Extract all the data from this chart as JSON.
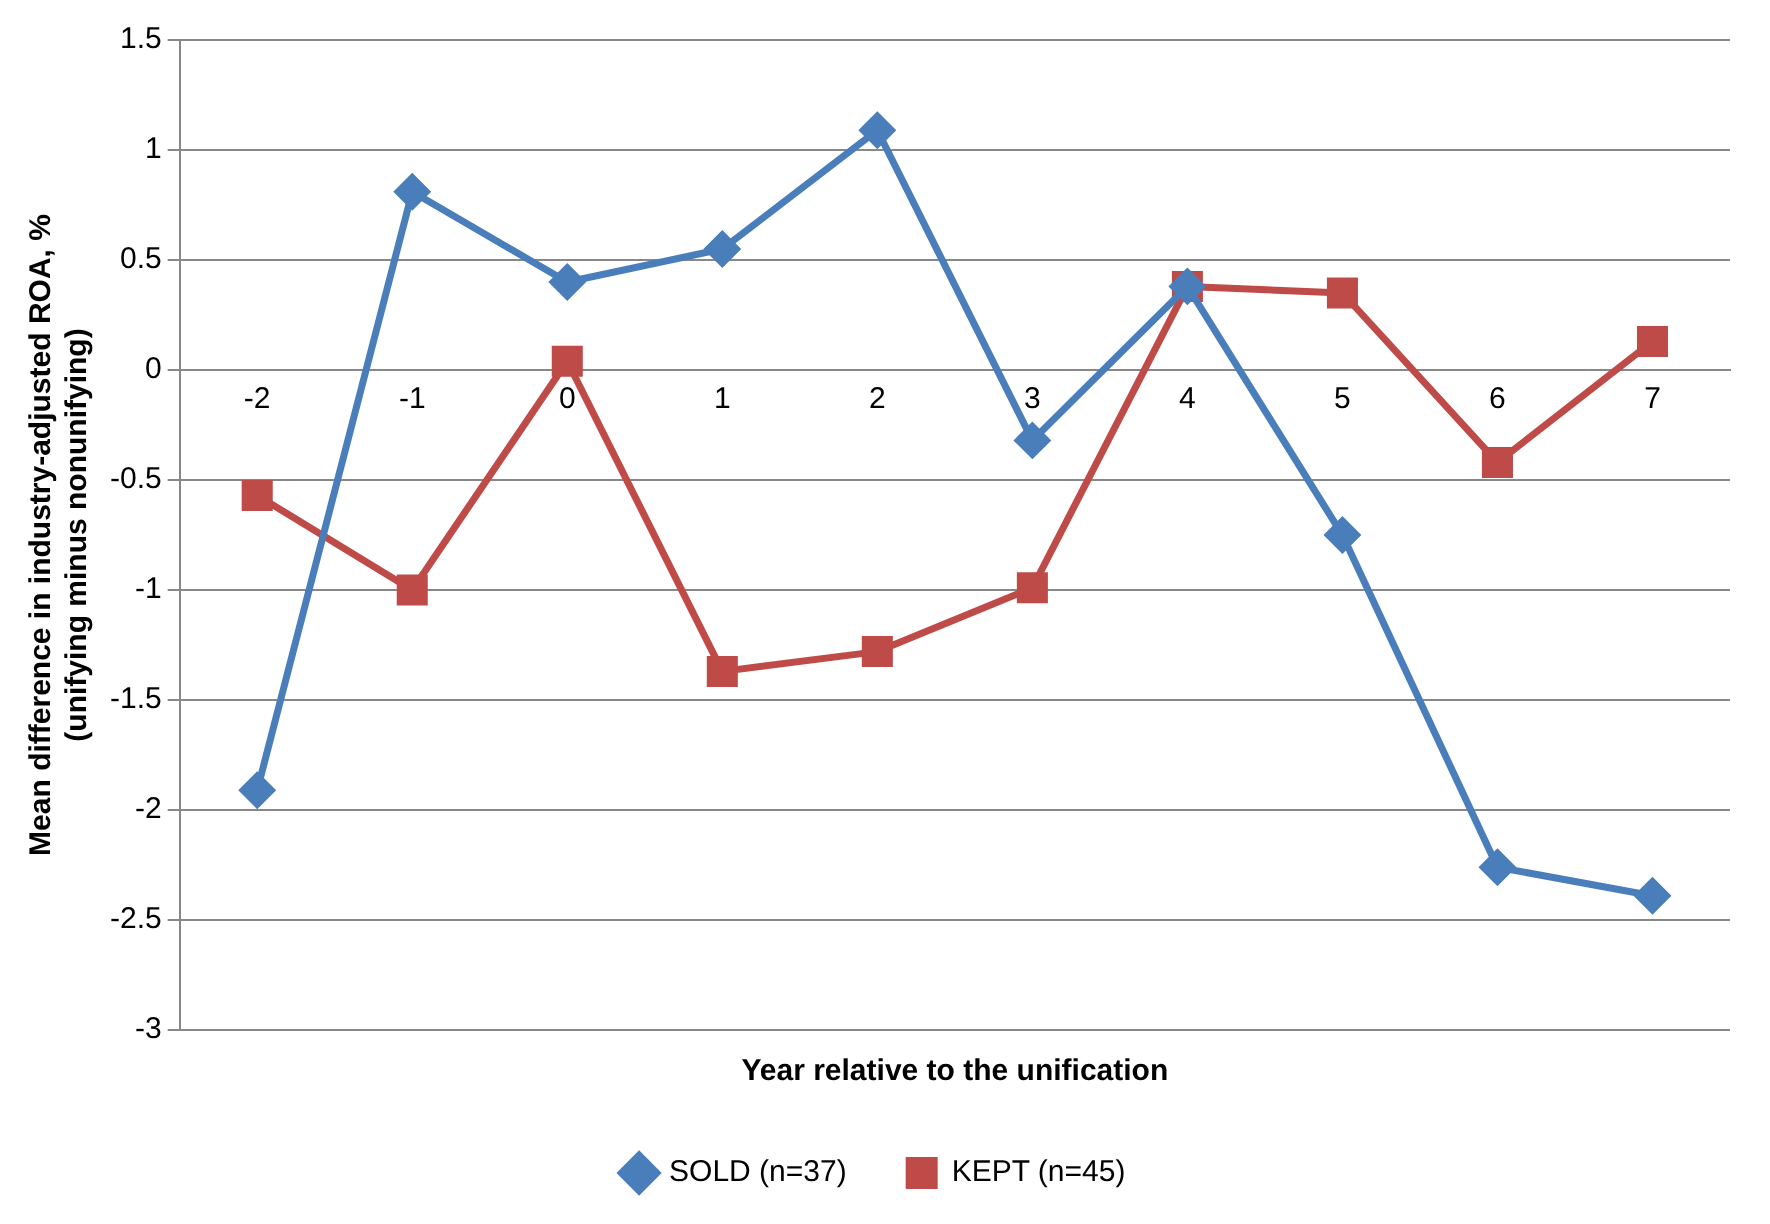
{
  "chart_data": {
    "type": "line",
    "xlabel": "Year relative to the unification",
    "ylabel": "Mean difference in industry-adjusted ROA, % (unifying minus nonunifying)",
    "categories": [
      "-2",
      "-1",
      "0",
      "1",
      "2",
      "3",
      "4",
      "5",
      "6",
      "7"
    ],
    "series": [
      {
        "name": "SOLD (n=37)",
        "color": "#4a7ebb",
        "marker": "diamond",
        "values": [
          -1.91,
          0.81,
          0.4,
          0.55,
          1.09,
          -0.32,
          0.38,
          -0.75,
          -2.26,
          -2.39
        ]
      },
      {
        "name": "KEPT (n=45)",
        "color": "#be4b48",
        "marker": "square",
        "values": [
          -0.57,
          -1.0,
          0.04,
          -1.37,
          -1.28,
          -0.99,
          0.38,
          0.35,
          -0.42,
          0.13
        ]
      }
    ],
    "ylim": [
      -3,
      1.5
    ],
    "yticks": [
      -3,
      -2.5,
      -2,
      -1.5,
      -1,
      -0.5,
      0,
      0.5,
      1,
      1.5
    ],
    "grid": "y",
    "legend": "bottom",
    "line_style": "solid"
  }
}
